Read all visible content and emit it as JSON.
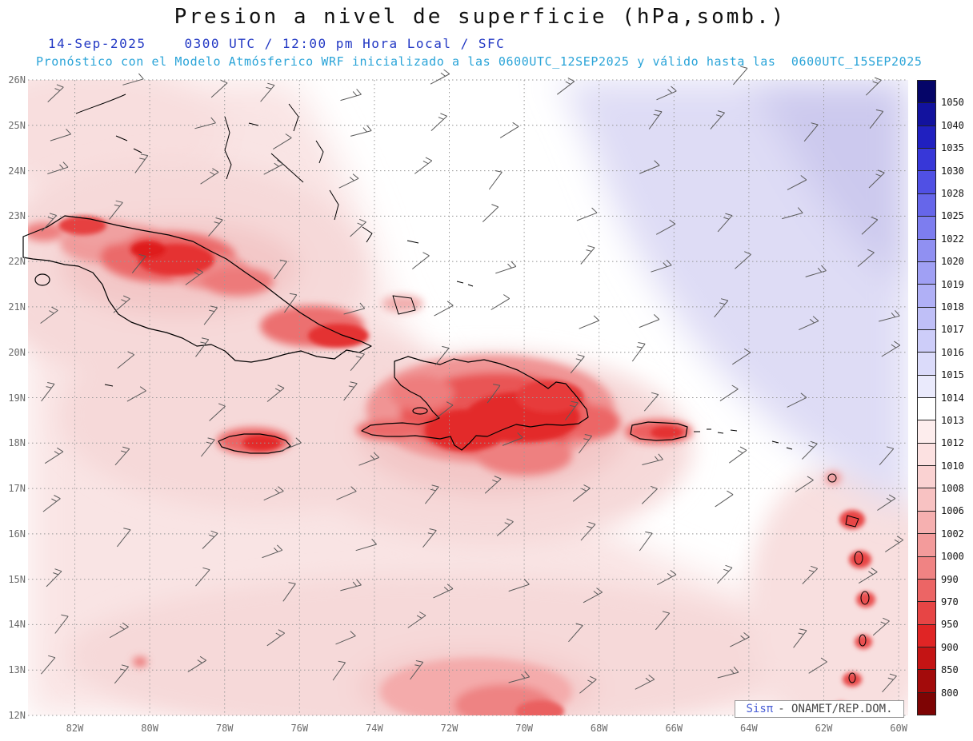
{
  "header": {
    "title": "Presion a nivel de superficie (hPa,somb.)",
    "date": "14-Sep-2025",
    "time": "0300 UTC / 12:00 pm Hora Local / SFC",
    "forecast": "Pronóstico con el Modelo Atmósferico WRF inicializado a las 0600UTC_12SEP2025 y válido hasta las  0600UTC_15SEP2025"
  },
  "map": {
    "lat_labels": [
      "26N",
      "25N",
      "24N",
      "23N",
      "22N",
      "21N",
      "20N",
      "19N",
      "18N",
      "17N",
      "16N",
      "15N",
      "14N",
      "13N",
      "12N"
    ],
    "lon_labels": [
      "82W",
      "80W",
      "78W",
      "76W",
      "74W",
      "72W",
      "70W",
      "68W",
      "66W",
      "64W",
      "62W",
      "60W"
    ]
  },
  "colorbar": {
    "unit": "hPa",
    "labels": [
      "1050",
      "1040",
      "1035",
      "1030",
      "1028",
      "1025",
      "1022",
      "1020",
      "1019",
      "1018",
      "1017",
      "1016",
      "1015",
      "1014",
      "1013",
      "1012",
      "1010",
      "1008",
      "1006",
      "1002",
      "1000",
      "990",
      "970",
      "950",
      "900",
      "850",
      "800"
    ],
    "colors": [
      "#050568",
      "#12129e",
      "#2020c0",
      "#3737d8",
      "#5050e4",
      "#6666ea",
      "#7d7def",
      "#9090f2",
      "#a0a0f4",
      "#b0b0f6",
      "#bfbff7",
      "#cdcdf9",
      "#dbdbfa",
      "#eaeafc",
      "#ffffff",
      "#fdeded",
      "#fce1e1",
      "#fad2d2",
      "#f8c2c2",
      "#f6b0b0",
      "#f39b9b",
      "#f08383",
      "#ec6565",
      "#e74545",
      "#e02525",
      "#c41414",
      "#a30b0b",
      "#7e0404"
    ]
  },
  "attribution": {
    "brand": "Sisπ",
    "text": "- ONAMET/REP.DOM."
  },
  "colors": {
    "title_text": "#111111",
    "date_text": "#2238c4",
    "forecast_text": "#2aa4d8",
    "low_pressure_red": "#e02525",
    "high_pressure_blue": "#9090f2",
    "neutral_white": "#ffffff"
  }
}
